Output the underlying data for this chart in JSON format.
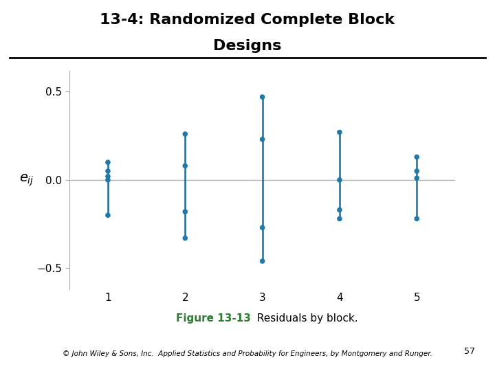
{
  "title_line1": "13-4: Randomized Complete Block",
  "title_line2": "Designs",
  "figure_caption_bold": "Figure 13-13",
  "figure_caption_normal": "  Residuals by block.",
  "copyright": "© John Wiley & Sons, Inc.  Applied Statistics and Probability for Engineers, by Montgomery and Runger.",
  "xlim": [
    0.5,
    5.5
  ],
  "ylim": [
    -0.62,
    0.62
  ],
  "yticks": [
    -0.5,
    0.0,
    0.5
  ],
  "xticks": [
    1,
    2,
    3,
    4,
    5
  ],
  "blocks": {
    "1": [
      0.1,
      0.05,
      0.02,
      0.0,
      -0.2
    ],
    "2": [
      0.26,
      0.08,
      -0.18,
      -0.33
    ],
    "3": [
      0.47,
      0.23,
      -0.27,
      -0.46
    ],
    "4": [
      0.27,
      0.0,
      -0.17,
      -0.22
    ],
    "5": [
      0.13,
      0.05,
      0.01,
      -0.22
    ]
  },
  "dot_color": "#1f7aaa",
  "line_color": "#1a6a9a",
  "zero_line_color": "#b0b0b0",
  "bg_color": "#ffffff",
  "title_fontsize": 16,
  "tick_fontsize": 11,
  "caption_fontsize": 11,
  "caption_color": "#2e7d32",
  "copyright_fontsize": 7.5,
  "dot_size": 30,
  "line_width": 1.8
}
